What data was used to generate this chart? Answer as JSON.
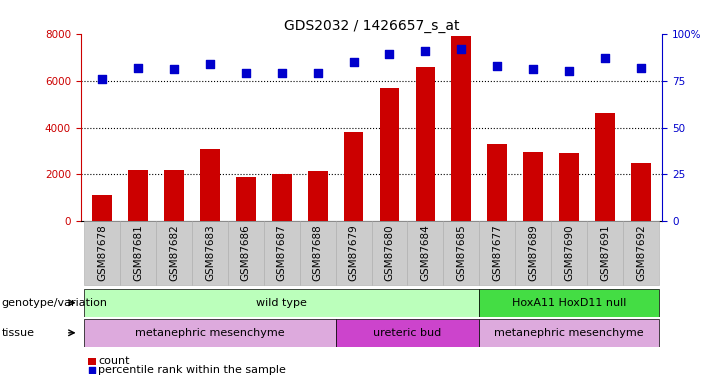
{
  "title": "GDS2032 / 1426657_s_at",
  "samples": [
    "GSM87678",
    "GSM87681",
    "GSM87682",
    "GSM87683",
    "GSM87686",
    "GSM87687",
    "GSM87688",
    "GSM87679",
    "GSM87680",
    "GSM87684",
    "GSM87685",
    "GSM87677",
    "GSM87689",
    "GSM87690",
    "GSM87691",
    "GSM87692"
  ],
  "counts": [
    1100,
    2200,
    2200,
    3100,
    1900,
    2000,
    2150,
    3800,
    5700,
    6600,
    7900,
    3300,
    2950,
    2900,
    4600,
    2500
  ],
  "percentiles": [
    76,
    82,
    81,
    84,
    79,
    79,
    79,
    85,
    89,
    91,
    92,
    83,
    81,
    80,
    87,
    82
  ],
  "bar_color": "#cc0000",
  "dot_color": "#0000cc",
  "ylim_left": [
    0,
    8000
  ],
  "ylim_right": [
    0,
    100
  ],
  "yticks_left": [
    0,
    2000,
    4000,
    6000,
    8000
  ],
  "yticks_right": [
    0,
    25,
    50,
    75,
    100
  ],
  "grid_lines": [
    2000,
    4000,
    6000
  ],
  "genotype_groups": [
    {
      "label": "wild type",
      "start": 0,
      "end": 10,
      "color": "#bbffbb"
    },
    {
      "label": "HoxA11 HoxD11 null",
      "start": 11,
      "end": 15,
      "color": "#44dd44"
    }
  ],
  "tissue_groups": [
    {
      "label": "metanephric mesenchyme",
      "start": 0,
      "end": 6,
      "color": "#ddaadd"
    },
    {
      "label": "ureteric bud",
      "start": 7,
      "end": 10,
      "color": "#cc44cc"
    },
    {
      "label": "metanephric mesenchyme",
      "start": 11,
      "end": 15,
      "color": "#ddaadd"
    }
  ],
  "tick_bg_color": "#cccccc",
  "tick_edge_color": "#aaaaaa",
  "legend_count_color": "#cc0000",
  "legend_dot_color": "#0000cc",
  "title_fontsize": 10,
  "label_fontsize": 8,
  "tick_fontsize": 7.5
}
